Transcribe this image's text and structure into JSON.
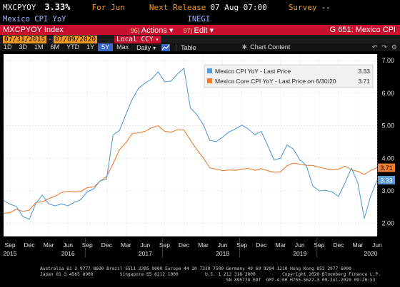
{
  "header": {
    "ticker": "MXCPYOY",
    "last": "3.33%",
    "period": "For Jun",
    "next_release_label": "Next Release",
    "next_release_value": "07 Aug 07:00",
    "survey_label": "Survey",
    "survey_value": "--",
    "description": "Mexico CPI YoY",
    "source": "INEGI"
  },
  "toolbar": {
    "index_label": "MXCPYOY Index",
    "actions_num": "96)",
    "actions_label": "Actions",
    "edit_num": "97)",
    "edit_label": "Edit",
    "graph_title": "G 651: Mexico CPI"
  },
  "range": {
    "start": "07/31/2015",
    "end": "07/09/2020",
    "currency": "Local CCY"
  },
  "periods": [
    "1D",
    "3D",
    "1M",
    "6M",
    "YTD",
    "1Y",
    "5Y",
    "Max"
  ],
  "selected_period": "5Y",
  "frequency": "Daily",
  "table_label": "Table",
  "chart_content_label": "Chart Content",
  "icons": {
    "undo": "undo-icon",
    "redo": "redo-icon",
    "settings": "gear-icon",
    "line_chart": "line-chart-icon",
    "chart_content": "chart-content-icon"
  },
  "colors": {
    "background": "#000000",
    "plot_bg": "#ffffff",
    "series1": "#5b9bd5",
    "series2": "#ed7d31",
    "accent_red": "#c8102e",
    "accent_orange": "#f39a1e"
  },
  "chart_data": {
    "type": "line",
    "y_ticks": [
      "2.00",
      "3.00",
      "4.00",
      "5.00",
      "6.00",
      "7.00"
    ],
    "ylim": [
      1.6,
      7.2
    ],
    "x_month_labels": [
      "Sep",
      "Dec",
      "Mar",
      "Jun",
      "Sep",
      "Dec",
      "Mar",
      "Jun",
      "Sep",
      "Dec",
      "Mar",
      "Jun",
      "Sep",
      "Dec",
      "Mar",
      "Jun",
      "Sep",
      "Dec",
      "Mar",
      "Jun"
    ],
    "x_month_index": [
      1,
      4,
      7,
      10,
      13,
      16,
      19,
      22,
      25,
      28,
      31,
      34,
      37,
      40,
      43,
      46,
      49,
      52,
      55,
      58
    ],
    "x_year_labels": [
      "2015",
      "2016",
      "2017",
      "2018",
      "2019",
      "2020"
    ],
    "x_year_index": [
      1,
      10,
      22,
      34,
      46,
      57
    ],
    "series": [
      {
        "name": "Mexico CPI YoY - Last Price",
        "last_value": "3.33",
        "values": [
          2.7,
          2.59,
          2.52,
          2.21,
          2.13,
          2.61,
          2.87,
          2.6,
          2.54,
          2.6,
          2.54,
          2.65,
          2.73,
          2.97,
          3.06,
          3.31,
          3.36,
          4.72,
          4.86,
          5.35,
          5.82,
          6.16,
          6.31,
          6.44,
          6.66,
          6.35,
          6.37,
          6.59,
          6.77,
          5.55,
          5.34,
          5.04,
          4.55,
          4.51,
          4.65,
          4.81,
          4.9,
          5.02,
          4.9,
          4.72,
          4.83,
          4.4,
          3.95,
          4.0,
          4.41,
          4.28,
          3.95,
          3.78,
          3.16,
          3.0,
          3.02,
          2.97,
          2.83,
          3.24,
          3.7,
          3.25,
          2.15,
          2.84,
          3.33
        ],
        "series_color": "#5b9bd5"
      },
      {
        "name": "Mexico Core CPI YoY - Last Price on 6/30/20",
        "last_value": "3.71",
        "values": [
          2.31,
          2.33,
          2.44,
          2.37,
          2.41,
          2.64,
          2.66,
          2.76,
          2.84,
          2.95,
          2.99,
          2.97,
          2.98,
          3.1,
          3.12,
          3.3,
          3.44,
          3.84,
          4.26,
          4.48,
          4.76,
          4.78,
          4.83,
          4.94,
          5.0,
          4.83,
          4.8,
          4.88,
          4.87,
          4.56,
          4.27,
          4.02,
          3.71,
          3.67,
          3.62,
          3.64,
          3.63,
          3.67,
          3.69,
          3.63,
          3.68,
          3.62,
          3.57,
          3.58,
          3.77,
          3.85,
          3.82,
          3.78,
          3.78,
          3.73,
          3.68,
          3.65,
          3.66,
          3.76,
          3.65,
          3.6,
          3.5,
          3.63,
          3.71
        ],
        "series_color": "#ed7d31"
      }
    ]
  },
  "footer_lines": [
    "Australia 61 2 9777 8600 Brazil 5511 2395 9000 Europe 44 20 7330 7500 Germany 49 69 9204 1210 Hong Kong 852 2977 6000",
    "Japan 81 3 4565 8900          Singapore 65 6212 1000          U.S. 1 212 318 2000          Copyright 2020 Bloomberg Finance L.P.",
    "                                                                      SN 895778 EDT  GMT-4:00 H755-5622-3 09-Jul-2020 09:20:53"
  ]
}
